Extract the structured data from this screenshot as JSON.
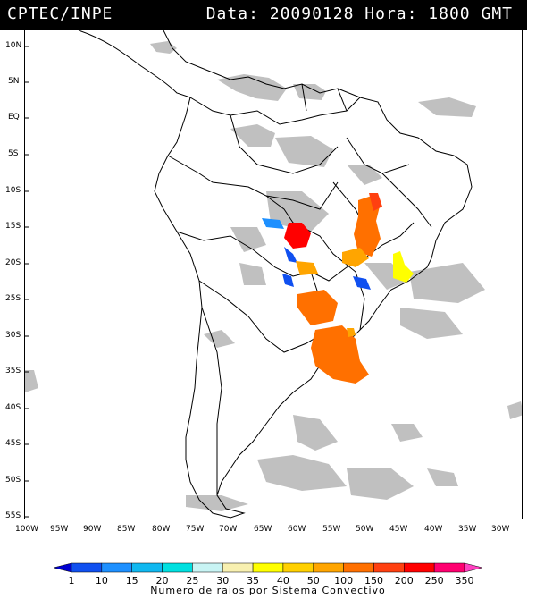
{
  "header": {
    "source": "CPTEC/INPE",
    "datetime": "Data: 20090128 Hora: 1800 GMT"
  },
  "map": {
    "lat_labels": [
      "10N",
      "5N",
      "EQ",
      "5S",
      "10S",
      "15S",
      "20S",
      "25S",
      "30S",
      "35S",
      "40S",
      "45S",
      "50S",
      "55S"
    ],
    "lon_labels": [
      "100W",
      "95W",
      "90W",
      "85W",
      "80W",
      "75W",
      "70W",
      "65W",
      "60W",
      "55W",
      "50W",
      "45W",
      "40W",
      "35W",
      "30W"
    ],
    "colors": {
      "cloud": "#c0c0c0",
      "coast": "#000000",
      "background": "#ffffff"
    }
  },
  "legend": {
    "title": "Numero de raios por Sistema Convectivo",
    "values": [
      "1",
      "10",
      "15",
      "20",
      "25",
      "30",
      "35",
      "40",
      "50",
      "100",
      "150",
      "200",
      "250",
      "350"
    ],
    "colors": [
      "#0000d0",
      "#1050f0",
      "#1e90ff",
      "#10b8f0",
      "#00e0e0",
      "#c8f4f4",
      "#f8f0b0",
      "#ffff00",
      "#ffd000",
      "#ffa500",
      "#ff7000",
      "#ff4010",
      "#ff0000",
      "#ff0070",
      "#ff40c0"
    ]
  }
}
